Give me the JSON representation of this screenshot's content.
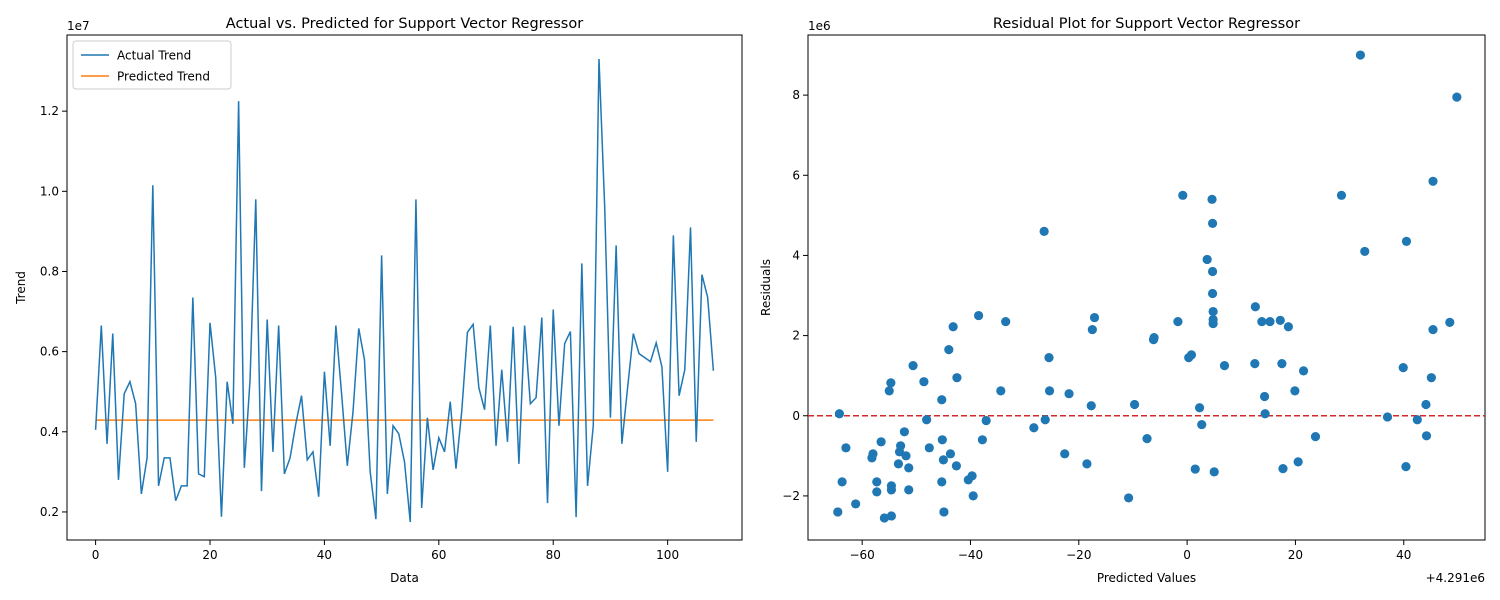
{
  "colors": {
    "actual": "#1f77b4",
    "predicted": "#ff7f0e",
    "scatter": "#1f77b4",
    "zero_line": "#d62728"
  },
  "chart_data": [
    {
      "type": "line",
      "title": "Actual vs. Predicted for Support Vector Regressor",
      "xlabel": "Data",
      "ylabel": "Trend",
      "scale_label": "1e7",
      "xlim": [
        -5,
        113
      ],
      "ylim": [
        1.3,
        13.9
      ],
      "xticks": [
        0,
        20,
        40,
        60,
        80,
        100
      ],
      "yticks": [
        0.2,
        0.4,
        0.6,
        0.8,
        1.0,
        1.2
      ],
      "ytick_labels": [
        "0.2",
        "0.4",
        "0.6",
        "0.8",
        "1.0",
        "1.2"
      ],
      "legend": {
        "position": "top-left",
        "entries": [
          "Actual Trend",
          "Predicted Trend"
        ]
      },
      "series": [
        {
          "name": "Actual Trend",
          "values": [
            4.05,
            6.65,
            3.7,
            6.45,
            2.8,
            4.95,
            5.25,
            4.7,
            2.45,
            3.35,
            10.15,
            2.65,
            3.35,
            3.35,
            2.28,
            2.65,
            2.65,
            7.35,
            2.95,
            2.88,
            6.72,
            5.35,
            1.88,
            5.25,
            4.2,
            12.25,
            3.1,
            5.3,
            9.8,
            2.52,
            6.8,
            3.5,
            6.65,
            2.95,
            3.35,
            4.2,
            4.9,
            3.3,
            3.5,
            2.38,
            5.5,
            3.65,
            6.65,
            4.95,
            3.15,
            4.5,
            6.58,
            5.8,
            3.0,
            1.82,
            8.4,
            2.45,
            4.15,
            3.95,
            3.25,
            1.75,
            9.8,
            2.1,
            4.35,
            3.05,
            3.85,
            3.5,
            4.75,
            3.08,
            4.5,
            6.48,
            6.68,
            5.1,
            4.55,
            6.65,
            3.65,
            5.55,
            3.75,
            6.62,
            3.2,
            6.65,
            4.7,
            4.85,
            6.85,
            2.22,
            7.05,
            4.15,
            6.2,
            6.5,
            1.87,
            8.2,
            2.65,
            4.15,
            13.3,
            9.6,
            4.35,
            8.65,
            3.7,
            5.1,
            6.45,
            5.95,
            5.85,
            5.75,
            6.22,
            5.62,
            3.0,
            8.9,
            4.9,
            5.55,
            9.1,
            3.75,
            7.92,
            7.35,
            5.52
          ]
        },
        {
          "name": "Predicted Trend",
          "values": [
            4.291,
            4.291
          ]
        }
      ]
    },
    {
      "type": "scatter",
      "title": "Residual Plot for Support Vector Regressor",
      "xlabel": "Predicted Values",
      "ylabel": "Residuals",
      "scale_label": "1e6",
      "x_offset_label": "+4.291e6",
      "xlim": [
        -70,
        55
      ],
      "ylim": [
        -3.1,
        9.5
      ],
      "xticks": [
        -60,
        -40,
        -20,
        0,
        20,
        40
      ],
      "xtick_labels": [
        "−60",
        "−40",
        "−20",
        "0",
        "20",
        "40"
      ],
      "yticks": [
        -2,
        0,
        2,
        4,
        6,
        8
      ],
      "ytick_labels": [
        "−2",
        "0",
        "2",
        "4",
        "6",
        "8"
      ],
      "hline": 0,
      "points": [
        [
          -64.2,
          0.05
        ],
        [
          -64.5,
          -2.4
        ],
        [
          -63.7,
          -1.65
        ],
        [
          -63.0,
          -0.8
        ],
        [
          -61.2,
          -2.2
        ],
        [
          -58.0,
          -0.95
        ],
        [
          -58.2,
          -1.05
        ],
        [
          -57.3,
          -1.65
        ],
        [
          -57.3,
          -1.9
        ],
        [
          -56.5,
          -0.65
        ],
        [
          -55.9,
          -2.55
        ],
        [
          -55.0,
          0.62
        ],
        [
          -54.7,
          0.82
        ],
        [
          -54.6,
          -1.75
        ],
        [
          -54.6,
          -1.85
        ],
        [
          -54.6,
          -2.5
        ],
        [
          -53.3,
          -1.2
        ],
        [
          -53.1,
          -0.9
        ],
        [
          -52.9,
          -0.75
        ],
        [
          -52.2,
          -0.4
        ],
        [
          -51.9,
          -1.0
        ],
        [
          -51.4,
          -1.3
        ],
        [
          -51.4,
          -1.85
        ],
        [
          -50.6,
          1.25
        ],
        [
          -48.6,
          0.85
        ],
        [
          -48.1,
          -0.1
        ],
        [
          -47.6,
          -0.8
        ],
        [
          -45.3,
          0.4
        ],
        [
          -45.2,
          -0.6
        ],
        [
          -45.0,
          -1.1
        ],
        [
          -45.3,
          -1.65
        ],
        [
          -44.9,
          -2.4
        ],
        [
          -44.0,
          1.65
        ],
        [
          -43.7,
          -0.95
        ],
        [
          -43.2,
          2.22
        ],
        [
          -42.5,
          0.95
        ],
        [
          -42.6,
          -1.25
        ],
        [
          -40.4,
          -1.6
        ],
        [
          -39.7,
          -1.5
        ],
        [
          -39.5,
          -2.0
        ],
        [
          -38.5,
          2.5
        ],
        [
          -37.8,
          -0.6
        ],
        [
          -37.1,
          -0.12
        ],
        [
          -34.4,
          0.62
        ],
        [
          -33.5,
          2.35
        ],
        [
          -28.3,
          -0.3
        ],
        [
          -26.4,
          4.6
        ],
        [
          -26.2,
          -0.1
        ],
        [
          -25.5,
          1.45
        ],
        [
          -25.4,
          0.62
        ],
        [
          -22.6,
          -0.95
        ],
        [
          -21.8,
          0.55
        ],
        [
          -18.5,
          -1.2
        ],
        [
          -17.7,
          0.25
        ],
        [
          -17.5,
          2.15
        ],
        [
          -17.1,
          2.45
        ],
        [
          -10.8,
          -2.05
        ],
        [
          -9.7,
          0.28
        ],
        [
          -7.4,
          -0.57
        ],
        [
          -6.2,
          1.9
        ],
        [
          -6.1,
          1.95
        ],
        [
          -1.7,
          2.35
        ],
        [
          -0.8,
          5.5
        ],
        [
          0.3,
          1.45
        ],
        [
          0.8,
          1.52
        ],
        [
          1.5,
          -1.33
        ],
        [
          2.3,
          0.2
        ],
        [
          2.7,
          -0.22
        ],
        [
          3.7,
          3.9
        ],
        [
          4.6,
          5.4
        ],
        [
          4.7,
          4.8
        ],
        [
          4.7,
          3.6
        ],
        [
          4.7,
          3.05
        ],
        [
          4.8,
          2.6
        ],
        [
          4.8,
          2.3
        ],
        [
          4.8,
          2.4
        ],
        [
          5.0,
          -1.4
        ],
        [
          6.9,
          1.25
        ],
        [
          12.6,
          2.72
        ],
        [
          12.5,
          1.3
        ],
        [
          13.8,
          2.35
        ],
        [
          14.3,
          0.48
        ],
        [
          14.4,
          0.05
        ],
        [
          15.3,
          2.35
        ],
        [
          17.2,
          2.38
        ],
        [
          17.5,
          1.3
        ],
        [
          17.7,
          -1.32
        ],
        [
          18.7,
          2.22
        ],
        [
          19.9,
          0.62
        ],
        [
          20.5,
          -1.15
        ],
        [
          21.5,
          1.12
        ],
        [
          23.7,
          -0.52
        ],
        [
          28.5,
          5.5
        ],
        [
          32.0,
          9.0
        ],
        [
          32.8,
          4.1
        ],
        [
          37.0,
          -0.03
        ],
        [
          39.9,
          1.2
        ],
        [
          40.4,
          -1.27
        ],
        [
          40.5,
          4.35
        ],
        [
          42.5,
          -0.1
        ],
        [
          44.1,
          0.28
        ],
        [
          44.2,
          -0.5
        ],
        [
          45.1,
          0.95
        ],
        [
          45.4,
          2.15
        ],
        [
          45.4,
          5.85
        ],
        [
          48.5,
          2.33
        ],
        [
          49.8,
          7.95
        ]
      ]
    }
  ]
}
